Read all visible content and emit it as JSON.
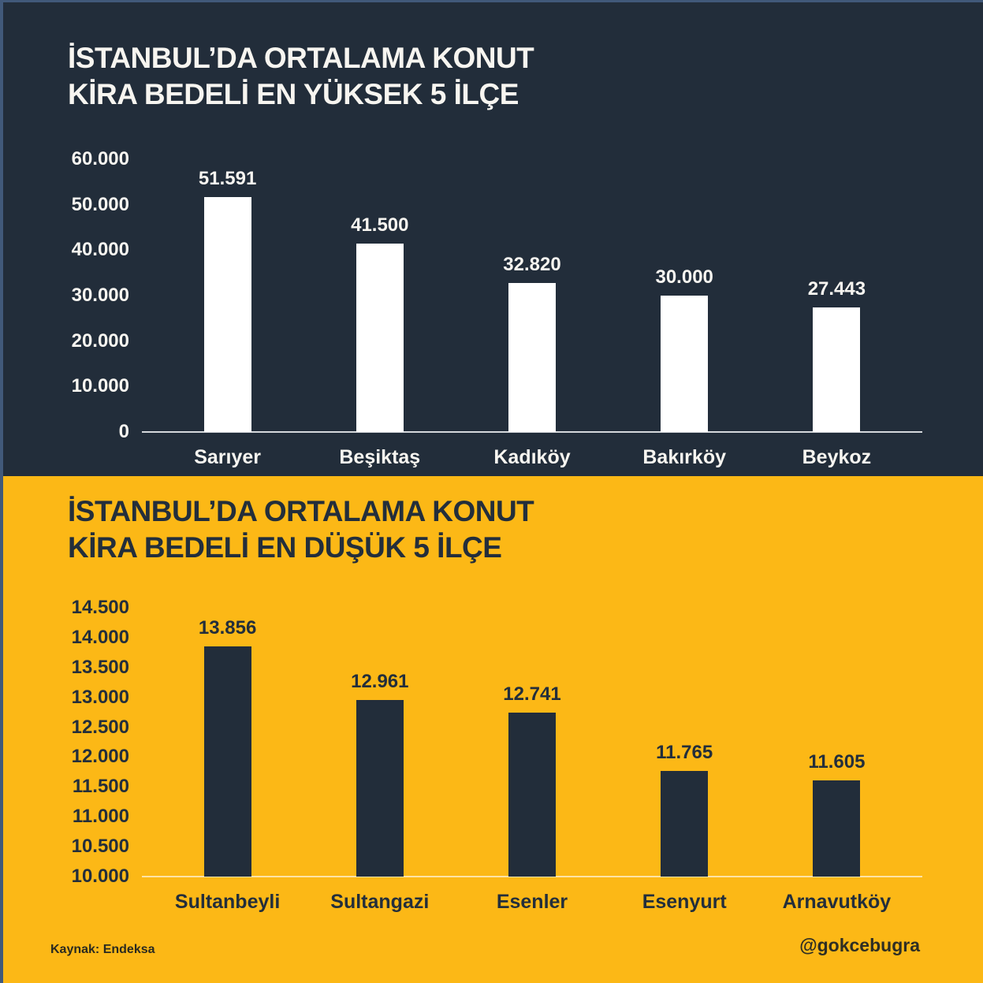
{
  "page": {
    "top_background": "#222D3A",
    "bottom_background": "#FCB816",
    "edge_border_color": "#41597A"
  },
  "footer": {
    "source": "Kaynak: Endeksa",
    "handle": "@gokcebugra"
  },
  "chart_data": [
    {
      "type": "bar",
      "title_line1": "İSTANBUL’DA ORTALAMA KONUT",
      "title_line2": "KİRA BEDELİ EN YÜKSEK 5 İLÇE",
      "categories": [
        "Sarıyer",
        "Beşiktaş",
        "Kadıköy",
        "Bakırköy",
        "Beykoz"
      ],
      "values": [
        51591,
        41500,
        32820,
        30000,
        27443
      ],
      "value_labels": [
        "51.591",
        "41.500",
        "32.820",
        "30.000",
        "27.443"
      ],
      "xlabel": "",
      "ylabel": "",
      "ylim": [
        0,
        60000
      ],
      "ytick_step": 10000,
      "ytick_labels": [
        "60.000",
        "50.000",
        "40.000",
        "30.000",
        "20.000",
        "10.000",
        "0"
      ],
      "grid": false,
      "legend": null,
      "bar_color": "#FFFFFF",
      "text_color": "#F7F5F0",
      "baseline_color": "#D5D8DC"
    },
    {
      "type": "bar",
      "title_line1": "İSTANBUL’DA ORTALAMA KONUT",
      "title_line2": "KİRA BEDELİ EN DÜŞÜK 5 İLÇE",
      "categories": [
        "Sultanbeyli",
        "Sultangazi",
        "Esenler",
        "Esenyurt",
        "Arnavutköy"
      ],
      "values": [
        13856,
        12961,
        12741,
        11765,
        11605
      ],
      "value_labels": [
        "13.856",
        "12.961",
        "12.741",
        "11.765",
        "11.605"
      ],
      "xlabel": "",
      "ylabel": "",
      "ylim": [
        10000,
        14500
      ],
      "ytick_step": 500,
      "ytick_labels": [
        "14.500",
        "14.000",
        "13.500",
        "13.000",
        "12.500",
        "12.000",
        "11.500",
        "11.000",
        "10.500",
        "10.000"
      ],
      "grid": false,
      "legend": null,
      "bar_color": "#222D3A",
      "text_color": "#232E3B",
      "baseline_color": "rgba(255,255,255,0.62)"
    }
  ]
}
